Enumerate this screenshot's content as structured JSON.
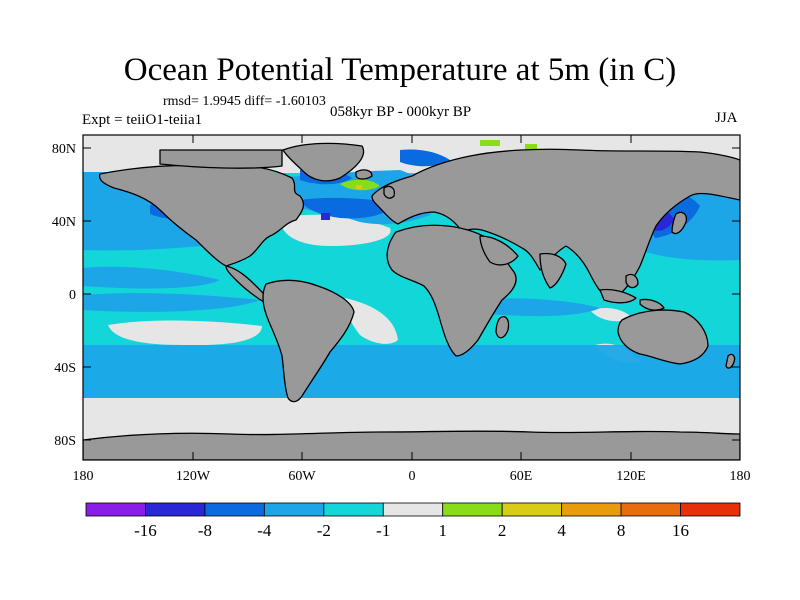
{
  "title": "Ocean Potential Temperature at 5m (in C)",
  "stats_line": "rmsd= 1.9945 diff= -1.60103",
  "experiment_label": "Expt = teiiO1-teiia1",
  "period_label": "058kyr BP - 000kyr BP",
  "season_label": "JJA",
  "lat_ticks": [
    "80N",
    "40N",
    "0",
    "40S",
    "80S"
  ],
  "lon_ticks": [
    "180",
    "120W",
    "60W",
    "0",
    "60E",
    "120E",
    "180"
  ],
  "colorbar": {
    "colors": [
      "#8a1ee6",
      "#2a28d6",
      "#0a6ae0",
      "#1ca6e8",
      "#13d6d8",
      "#e6e6e6",
      "#88dc18",
      "#d8cc14",
      "#e89c0c",
      "#e86c0c",
      "#e6300a"
    ],
    "labels": [
      "-16",
      "-8",
      "-4",
      "-2",
      "-1",
      "1",
      "2",
      "4",
      "8",
      "16"
    ]
  },
  "palette": {
    "land": "#999999",
    "ocean_base": "#13d6d8",
    "near_zero": "#e6e6e6",
    "light_blue": "#1ca6e8",
    "mid_blue": "#0a6ae0",
    "dark_blue": "#2a28d6",
    "green": "#88dc18",
    "yellow": "#d8cc14"
  }
}
